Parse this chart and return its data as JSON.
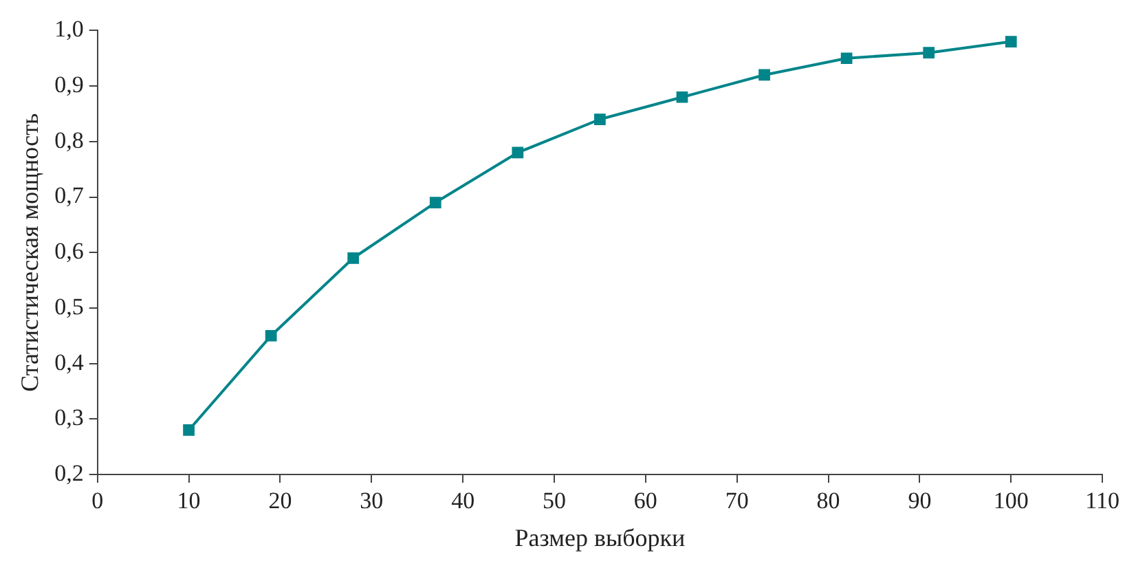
{
  "chart_data": {
    "type": "line",
    "xlabel": "Размер выборки",
    "ylabel": "Статистическая мощность",
    "x": [
      10,
      19,
      28,
      37,
      46,
      55,
      64,
      73,
      82,
      91,
      100
    ],
    "series": [
      {
        "color": "#00858a",
        "values": [
          0.28,
          0.45,
          0.59,
          0.69,
          0.78,
          0.84,
          0.88,
          0.92,
          0.95,
          0.96,
          0.98
        ]
      }
    ],
    "xlim": [
      0,
      110
    ],
    "xticks": [
      0,
      10,
      20,
      30,
      40,
      50,
      60,
      70,
      80,
      90,
      100,
      110
    ],
    "ylim": [
      0.2,
      1.0
    ],
    "yticks": [
      {
        "value": 0.2,
        "label": "0,2"
      },
      {
        "value": 0.3,
        "label": "0,3"
      },
      {
        "value": 0.4,
        "label": "0,4"
      },
      {
        "value": 0.5,
        "label": "0,5"
      },
      {
        "value": 0.6,
        "label": "0,6"
      },
      {
        "value": 0.7,
        "label": "0,7"
      },
      {
        "value": 0.8,
        "label": "0,8"
      },
      {
        "value": 0.9,
        "label": "0,9"
      },
      {
        "value": 1.0,
        "label": "1,0"
      }
    ],
    "grid": false,
    "legend": false,
    "marker": "square",
    "line_style": "solid"
  }
}
